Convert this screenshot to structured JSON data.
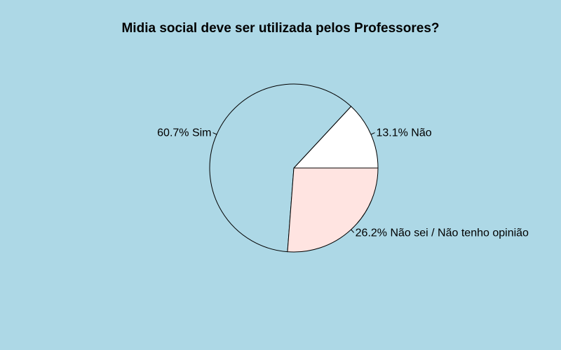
{
  "chart_data": {
    "type": "pie",
    "title": "Midia social deve ser utilizada pelos Professores?",
    "slices": [
      {
        "label": "Não",
        "value": 13.1,
        "display": "13.1% Não",
        "color": "#ffffff"
      },
      {
        "label": "Sim",
        "value": 60.7,
        "display": "60.7% Sim",
        "color": "#add8e6"
      },
      {
        "label": "Não sei / Não tenho opinião",
        "value": 26.2,
        "display": "26.2% Não sei / Não tenho opinião",
        "color": "#ffe4e1"
      }
    ],
    "start_angle_deg": 0,
    "direction": "counterclockwise",
    "background": "#add8e6",
    "border_color": "#000000"
  }
}
